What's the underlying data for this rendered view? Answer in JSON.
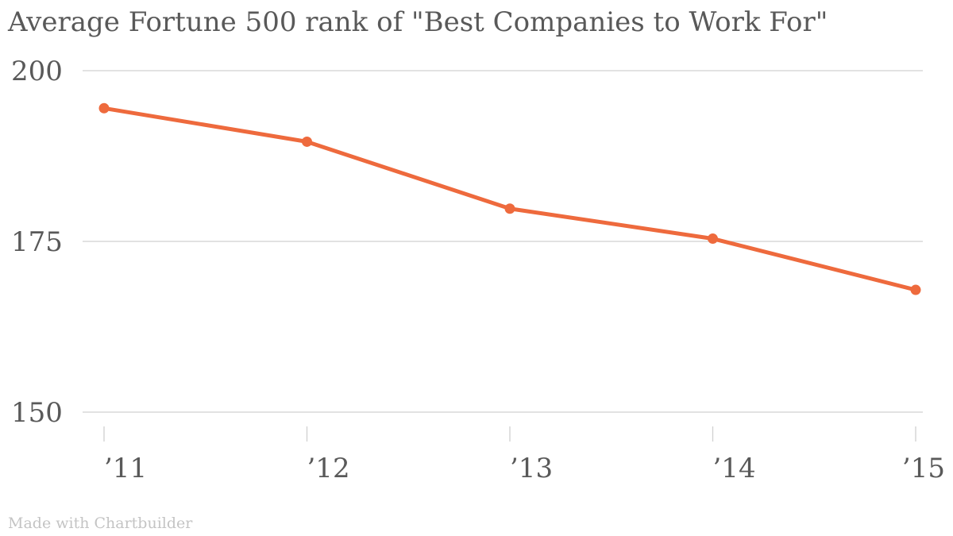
{
  "title": "Average Fortune 500 rank of \"Best Companies to Work For\"",
  "credit": "Made with Chartbuilder",
  "colors": {
    "series": "#ee6a3d",
    "grid": "#d0d0d0",
    "text": "#595959",
    "credit": "#c4c4c4"
  },
  "chart_data": {
    "type": "line",
    "title": "Average Fortune 500 rank of \"Best Companies to Work For\"",
    "xlabel": "",
    "ylabel": "",
    "categories": [
      "’11",
      "’12",
      "’13",
      "’14",
      "’15"
    ],
    "series": [
      {
        "values": [
          194.5,
          189.6,
          179.8,
          175.4,
          167.9
        ]
      }
    ],
    "ylim": [
      150,
      200
    ],
    "yticks": [
      150,
      175,
      200
    ],
    "grid": true,
    "legend": "none"
  }
}
